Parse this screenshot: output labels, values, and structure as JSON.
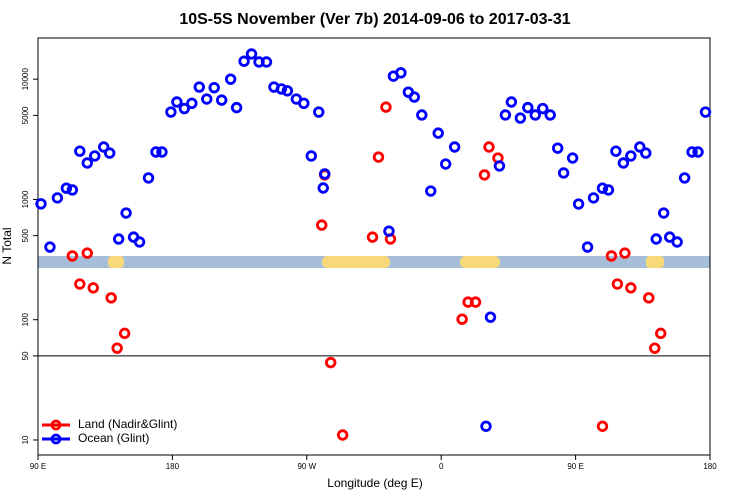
{
  "chart_data": {
    "type": "scatter",
    "title": "10S-5S November (Ver 7b)   2014-09-06 to 2017-03-31",
    "x_label": "Longitude (deg E)",
    "y_label": "N Total",
    "log_y": true,
    "xlim": [
      90,
      540
    ],
    "ylim": [
      7.5,
      22000
    ],
    "xticks": [
      {
        "value": 90,
        "label": "90 E"
      },
      180,
      {
        "value": 270,
        "label": "90 W"
      },
      {
        "value": 360,
        "label": "0"
      },
      {
        "value": 450,
        "label": "90 E"
      },
      {
        "value": 540,
        "label": "180"
      }
    ],
    "yticks": [
      10,
      50,
      100,
      500,
      1000,
      5000,
      10000
    ],
    "hline": 50,
    "legend": "bottom-left",
    "series": [
      {
        "name": "Land (Nadir&Glint)",
        "color": "#ff0000",
        "x": [
          113,
          118,
          123,
          127,
          139,
          143,
          148,
          280,
          282,
          286,
          294,
          314,
          318,
          323,
          326,
          374,
          378,
          383,
          389,
          392,
          398,
          468,
          474,
          478,
          483,
          487,
          499,
          503,
          507
        ],
        "values": [
          339,
          198,
          358,
          184,
          152,
          58,
          77,
          612,
          1600,
          44,
          11,
          486,
          2250,
          5860,
          469,
          101,
          140,
          140,
          1600,
          2730,
          2210,
          13,
          339,
          198,
          358,
          184,
          152,
          58,
          77
        ]
      },
      {
        "name": "Ocean (Glint)",
        "color": "#0000ff",
        "x": [
          92,
          98,
          103,
          109,
          113,
          118,
          123,
          128,
          134,
          138,
          144,
          149,
          154,
          158,
          164,
          169,
          173,
          179,
          183,
          188,
          193,
          198,
          203,
          208,
          213,
          219,
          223,
          228,
          233,
          238,
          243,
          248,
          253,
          257,
          263,
          268,
          273,
          278,
          281,
          282,
          325,
          328,
          333,
          338,
          342,
          347,
          353,
          358,
          363,
          369,
          390,
          393,
          399,
          403,
          407,
          413,
          418,
          423,
          428,
          433,
          438,
          442,
          448,
          452,
          458,
          462,
          468,
          472,
          477,
          482,
          487,
          493,
          497,
          504,
          509,
          513,
          518,
          523,
          528,
          532,
          537
        ],
        "values": [
          920,
          402,
          1030,
          1240,
          1200,
          2520,
          2010,
          2300,
          2730,
          2430,
          469,
          771,
          486,
          443,
          1510,
          2480,
          2480,
          5330,
          6460,
          5700,
          6300,
          8600,
          6840,
          8500,
          6700,
          10000,
          5800,
          14100,
          16200,
          13900,
          13900,
          8600,
          8300,
          8000,
          6840,
          6300,
          2300,
          5330,
          1245,
          1630,
          545,
          10600,
          11300,
          7800,
          7100,
          5040,
          1175,
          3560,
          1970,
          2730,
          13,
          105,
          1900,
          5040,
          6460,
          4750,
          5800,
          5040,
          5700,
          5040,
          2670,
          1660,
          2210,
          916,
          402,
          1030,
          1240,
          1200,
          2520,
          2010,
          2300,
          2730,
          2430,
          469,
          771,
          486,
          443,
          1510,
          2480,
          2480,
          5330
        ]
      }
    ]
  }
}
